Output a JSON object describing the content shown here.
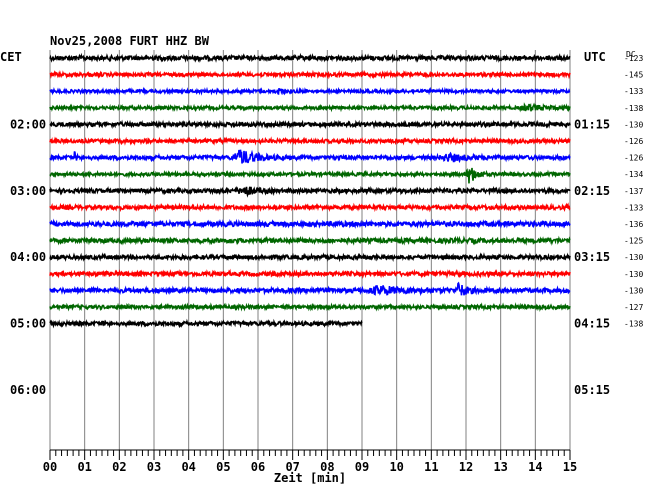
{
  "chart_data": {
    "type": "line",
    "title": "Nov25,2008   FURT HHZ BW",
    "left_axis_label": "CET",
    "right_axis_label": "UTC",
    "offset_header": "DC",
    "xlabel": "Zeit [min]",
    "xlim": [
      0,
      15
    ],
    "x_ticks": [
      "00",
      "01",
      "02",
      "03",
      "04",
      "05",
      "06",
      "07",
      "08",
      "09",
      "10",
      "11",
      "12",
      "13",
      "14",
      "15"
    ],
    "left_time_labels": [
      "02:00",
      "03:00",
      "04:00",
      "05:00",
      "06:00"
    ],
    "right_time_labels": [
      "01:15",
      "02:15",
      "03:15",
      "04:15",
      "05:15"
    ],
    "rows_per_hour": 4,
    "trace_colors": [
      "#000000",
      "#ff0000",
      "#0000ff",
      "#006600"
    ],
    "dc_offsets": [
      "-123",
      "-145",
      "-133",
      "-138",
      "-130",
      "-126",
      "-126",
      "-134",
      "-137",
      "-133",
      "-136",
      "-125",
      "-130",
      "-130",
      "-130",
      "-127",
      "-138"
    ],
    "traces": [
      {
        "row": 0,
        "end_min": 15,
        "amplitude": 2.2,
        "events": []
      },
      {
        "row": 1,
        "end_min": 15,
        "amplitude": 1.8,
        "events": []
      },
      {
        "row": 2,
        "end_min": 15,
        "amplitude": 1.5,
        "events": [
          {
            "t": 6.6,
            "amp": 2,
            "dur": 0.5
          }
        ]
      },
      {
        "row": 3,
        "end_min": 15,
        "amplitude": 1.6,
        "events": [
          {
            "t": 13.8,
            "amp": 2.5,
            "dur": 1.0
          }
        ]
      },
      {
        "row": 4,
        "end_min": 15,
        "amplitude": 2.0,
        "events": []
      },
      {
        "row": 5,
        "end_min": 15,
        "amplitude": 1.8,
        "events": []
      },
      {
        "row": 6,
        "end_min": 15,
        "amplitude": 2.0,
        "events": [
          {
            "t": 0.7,
            "amp": 5,
            "dur": 0.1
          },
          {
            "t": 5.5,
            "amp": 7,
            "dur": 0.9
          },
          {
            "t": 11.5,
            "amp": 3,
            "dur": 1.0
          }
        ]
      },
      {
        "row": 7,
        "end_min": 15,
        "amplitude": 1.6,
        "events": [
          {
            "t": 12.1,
            "amp": 9,
            "dur": 0.4
          }
        ]
      },
      {
        "row": 8,
        "end_min": 15,
        "amplitude": 2.0,
        "events": [
          {
            "t": 5.6,
            "amp": 4,
            "dur": 0.7
          }
        ]
      },
      {
        "row": 9,
        "end_min": 15,
        "amplitude": 2.0,
        "events": []
      },
      {
        "row": 10,
        "end_min": 15,
        "amplitude": 2.4,
        "events": []
      },
      {
        "row": 11,
        "end_min": 15,
        "amplitude": 2.2,
        "events": []
      },
      {
        "row": 12,
        "end_min": 15,
        "amplitude": 2.0,
        "events": []
      },
      {
        "row": 13,
        "end_min": 15,
        "amplitude": 2.0,
        "events": []
      },
      {
        "row": 14,
        "end_min": 15,
        "amplitude": 2.2,
        "events": [
          {
            "t": 9.5,
            "amp": 4,
            "dur": 1.2
          },
          {
            "t": 11.8,
            "amp": 7,
            "dur": 0.4
          }
        ]
      },
      {
        "row": 15,
        "end_min": 15,
        "amplitude": 1.8,
        "events": []
      },
      {
        "row": 16,
        "end_min": 9.0,
        "amplitude": 2.0,
        "events": []
      }
    ]
  }
}
